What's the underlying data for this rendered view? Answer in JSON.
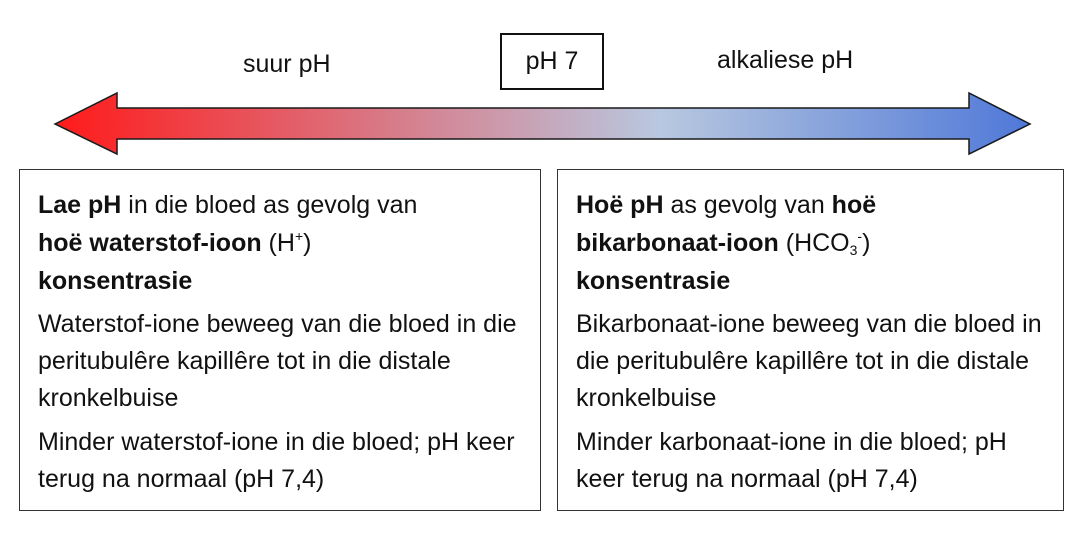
{
  "scale": {
    "acid_label": "suur pH",
    "neutral_label": "pH 7",
    "alkaline_label": "alkaliese pH",
    "colors": {
      "acid": "#ff1a1a",
      "mid": "#b8c8e0",
      "alkaline": "#4f78d8"
    }
  },
  "left_panel": {
    "heading_bold_1": "Lae pH",
    "heading_text_1": " in die bloed as gevolg van ",
    "heading_bold_2": "hoë waterstof-ioon",
    "heading_text_2": " (H",
    "heading_sup": "+",
    "heading_text_3": ")",
    "heading_bold_3": "konsentrasie",
    "paragraph_1": "Waterstof-ione beweeg van die bloed in die peritubulêre kapillêre tot in die distale kronkelbuise",
    "paragraph_2": "Minder waterstof-ione in die bloed; pH keer terug na normaal (pH 7,4)"
  },
  "right_panel": {
    "heading_bold_1": "Hoë pH",
    "heading_text_1": " as gevolg van ",
    "heading_bold_2": "hoë bikarbonaat-ioon",
    "heading_text_2": " (HCO",
    "heading_sub": "3",
    "heading_sup": "-",
    "heading_text_3": ")",
    "heading_bold_3": "konsentrasie",
    "paragraph_1": "Bikarbonaat-ione beweeg van die bloed in die peritubulêre kapillêre tot in die distale kronkelbuise",
    "paragraph_2": "Minder karbonaat-ione in die bloed; pH keer terug na normaal (pH 7,4)"
  }
}
